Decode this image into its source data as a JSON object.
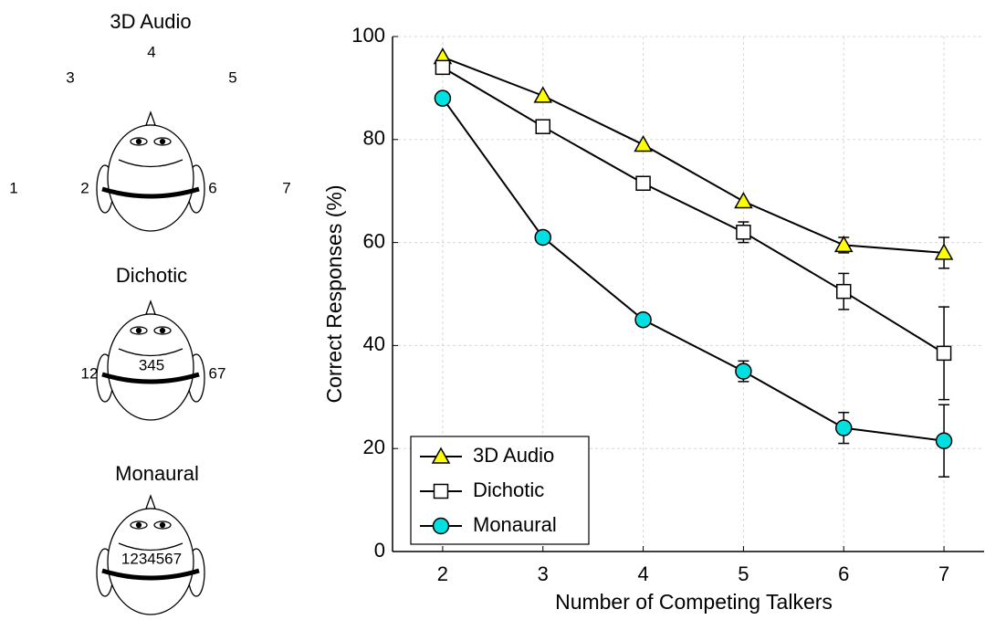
{
  "diagram": {
    "panels": [
      {
        "title": "3D Audio",
        "color": "#e0182b",
        "labels": [
          "1",
          "2",
          "3",
          "4",
          "5",
          "6",
          "7"
        ]
      },
      {
        "title": "Dichotic",
        "color": "#000000",
        "labels": [
          "12",
          "345",
          "67"
        ]
      },
      {
        "title": "Monaural",
        "color": "#1a1ab8",
        "labels": [
          "1234567"
        ]
      }
    ]
  },
  "chart_data": {
    "type": "line",
    "x": [
      2,
      3,
      4,
      5,
      6,
      7
    ],
    "xlim": [
      1.5,
      7.4
    ],
    "xticks": [
      2,
      3,
      4,
      5,
      6,
      7
    ],
    "ylim": [
      0,
      100
    ],
    "yticks": [
      0,
      20,
      40,
      60,
      80,
      100
    ],
    "xlabel": "Number of Competing Talkers",
    "ylabel": "Correct Responses (%)",
    "grid": true,
    "legend": "lower left",
    "series": [
      {
        "name": "3D Audio",
        "color": "#000000",
        "marker": "triangle",
        "marker_color": "#ffff00",
        "values": [
          96,
          88.5,
          79,
          68,
          59.5,
          58
        ],
        "errors": [
          null,
          null,
          null,
          null,
          1.5,
          3
        ]
      },
      {
        "name": "Dichotic",
        "color": "#000000",
        "marker": "square",
        "marker_color": "#ffffff",
        "values": [
          94,
          82.5,
          71.5,
          62,
          50.5,
          38.5
        ],
        "errors": [
          null,
          null,
          null,
          2,
          3.5,
          9
        ]
      },
      {
        "name": "Monaural",
        "color": "#000000",
        "marker": "circle",
        "marker_color": "#00e0e0",
        "values": [
          88,
          61,
          45,
          35,
          24,
          21.5
        ],
        "errors": [
          null,
          null,
          null,
          2,
          3,
          7
        ]
      }
    ]
  }
}
